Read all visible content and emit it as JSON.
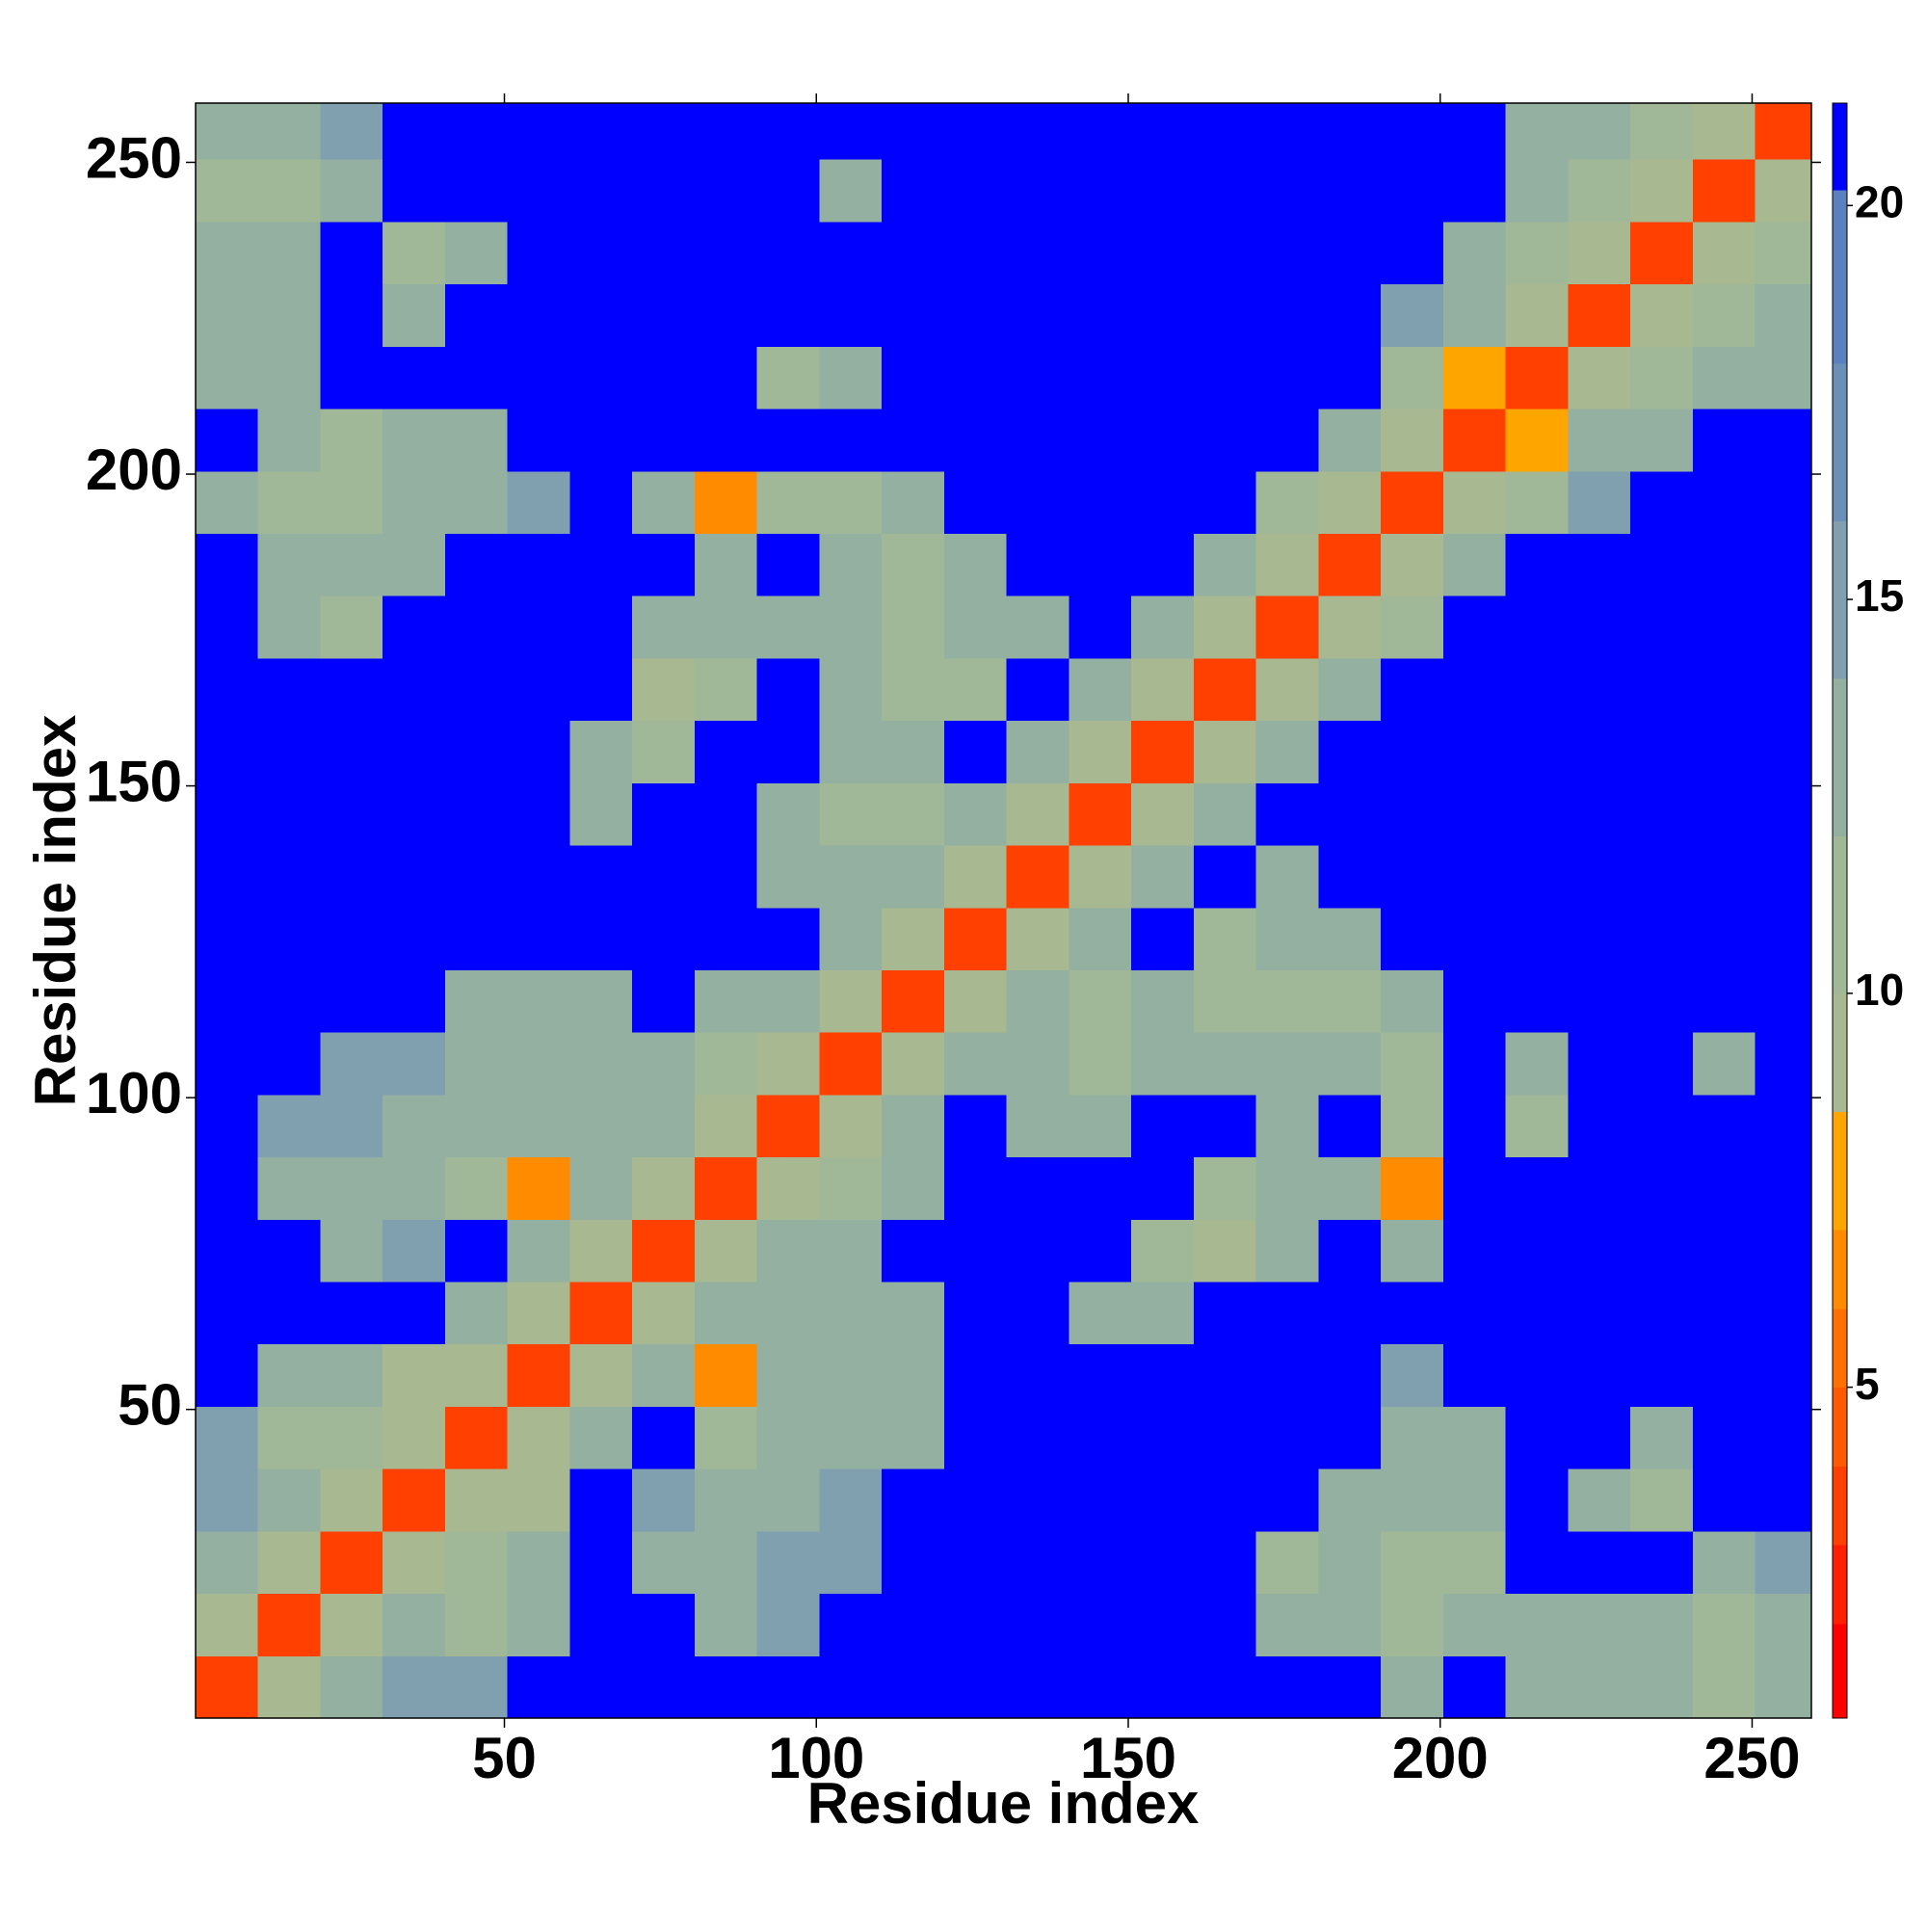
{
  "chart_data": {
    "type": "heatmap",
    "xlabel": "Residue index",
    "ylabel": "Residue index",
    "xlim": [
      0.5,
      259.5
    ],
    "ylim": [
      0.5,
      259.5
    ],
    "xticks": [
      50,
      100,
      150,
      200,
      250
    ],
    "yticks": [
      50,
      100,
      150,
      200,
      250
    ],
    "xbins": [
      0.5,
      10.5,
      20.5,
      30.5,
      40.5,
      50.5,
      60.5,
      70.5,
      80.5,
      90.5,
      100.5,
      110.5,
      120.5,
      130.5,
      140.5,
      150.5,
      160.5,
      170.5,
      180.5,
      190.5,
      200.5,
      210.5,
      220.5,
      230.5,
      240.5,
      250.5,
      259.5
    ],
    "ybins": [
      0.5,
      10.5,
      20.5,
      30.5,
      40.5,
      50.5,
      60.5,
      70.5,
      80.5,
      90.5,
      100.5,
      110.5,
      120.5,
      130.5,
      140.5,
      150.5,
      160.5,
      170.5,
      180.5,
      190.5,
      200.5,
      210.5,
      220.5,
      230.5,
      240.5,
      250.5,
      259.5
    ],
    "zlim": [
      0.8,
      21.3
    ],
    "zticks": [
      5,
      10,
      15,
      20
    ],
    "colorscale": [
      [
        2,
        "#ff0000"
      ],
      [
        3,
        "#ff2000"
      ],
      [
        4,
        "#ff4000"
      ],
      [
        5,
        "#ff5a00"
      ],
      [
        6,
        "#ff7000"
      ],
      [
        7,
        "#ff8c00"
      ],
      [
        8.5,
        "#ffa500"
      ],
      [
        10,
        "#a8b890"
      ],
      [
        12,
        "#a0b898"
      ],
      [
        14,
        "#94b0a0"
      ],
      [
        16,
        "#80a0b0"
      ],
      [
        18,
        "#6a90b8"
      ],
      [
        20.2,
        "#5a80c0"
      ],
      [
        21.3,
        "#0000ff"
      ]
    ],
    "z": [
      [
        4,
        10,
        14,
        15,
        16,
        21,
        21,
        21,
        21,
        21,
        21,
        21,
        21,
        21,
        21,
        21,
        21,
        21,
        21,
        14,
        21,
        14,
        14,
        14,
        12,
        13
      ],
      [
        10,
        4,
        10,
        13,
        12,
        14,
        21,
        21,
        14,
        15,
        21,
        21,
        21,
        21,
        21,
        21,
        21,
        13,
        14,
        11,
        13,
        14,
        13,
        13,
        12,
        14
      ],
      [
        14,
        10,
        4,
        10,
        12,
        13,
        21,
        14,
        13,
        15,
        15,
        21,
        21,
        21,
        21,
        21,
        21,
        12,
        13,
        12,
        12,
        21,
        21,
        21,
        14,
        15
      ],
      [
        15,
        13,
        10,
        4,
        10,
        10,
        21,
        15,
        13,
        14,
        15,
        21,
        21,
        21,
        21,
        21,
        21,
        21,
        14,
        13,
        13,
        21,
        14,
        12,
        21,
        21
      ],
      [
        16,
        12,
        12,
        10,
        4,
        10,
        14,
        21,
        12,
        13,
        14,
        14,
        21,
        21,
        21,
        21,
        21,
        21,
        21,
        14,
        14,
        21,
        21,
        14,
        21,
        21
      ],
      [
        21,
        14,
        13,
        10,
        10,
        4,
        10,
        14,
        7,
        14,
        13,
        13,
        21,
        21,
        21,
        21,
        21,
        21,
        21,
        15,
        21,
        21,
        21,
        21,
        21,
        21
      ],
      [
        21,
        21,
        21,
        21,
        14,
        10,
        4,
        10,
        14,
        13,
        14,
        13,
        21,
        21,
        14,
        13,
        21,
        21,
        21,
        21,
        21,
        21,
        21,
        21,
        21,
        21
      ],
      [
        21,
        21,
        14,
        15,
        21,
        14,
        10,
        4,
        10,
        14,
        13,
        21,
        21,
        21,
        21,
        12,
        9,
        14,
        21,
        13,
        21,
        21,
        21,
        21,
        21,
        21
      ],
      [
        21,
        14,
        13,
        13,
        12,
        7,
        14,
        10,
        4,
        10,
        12,
        14,
        21,
        21,
        21,
        21,
        12,
        13,
        14,
        7,
        21,
        21,
        21,
        21,
        21,
        21
      ],
      [
        21,
        15,
        15,
        14,
        13,
        14,
        13,
        14,
        10,
        4,
        10,
        13,
        21,
        14,
        13,
        21,
        21,
        13,
        21,
        12,
        21,
        12,
        21,
        21,
        21,
        21
      ],
      [
        21,
        21,
        15,
        15,
        14,
        13,
        14,
        13,
        12,
        10,
        4,
        10,
        14,
        13,
        12,
        13,
        14,
        13,
        13,
        12,
        21,
        13,
        21,
        21,
        14,
        21
      ],
      [
        21,
        21,
        21,
        21,
        14,
        13,
        13,
        21,
        14,
        13,
        10,
        4,
        10,
        14,
        12,
        13,
        12,
        11,
        12,
        13,
        21,
        21,
        21,
        21,
        21,
        21
      ],
      [
        21,
        21,
        21,
        21,
        21,
        21,
        21,
        21,
        21,
        21,
        14,
        10,
        4,
        10,
        14,
        21,
        12,
        13,
        13,
        21,
        21,
        21,
        21,
        21,
        21,
        21
      ],
      [
        21,
        21,
        21,
        21,
        21,
        21,
        21,
        21,
        21,
        14,
        13,
        14,
        10,
        4,
        10,
        14,
        21,
        13,
        21,
        21,
        21,
        21,
        21,
        21,
        21,
        21
      ],
      [
        21,
        21,
        21,
        21,
        21,
        21,
        14,
        21,
        21,
        13,
        12,
        12,
        14,
        10,
        4,
        10,
        13,
        21,
        21,
        21,
        21,
        21,
        21,
        21,
        21,
        21
      ],
      [
        21,
        21,
        21,
        21,
        21,
        21,
        13,
        12,
        21,
        21,
        13,
        13,
        21,
        14,
        10,
        4,
        10,
        13,
        21,
        21,
        21,
        21,
        21,
        21,
        21,
        21
      ],
      [
        21,
        21,
        21,
        21,
        21,
        21,
        21,
        9,
        12,
        21,
        14,
        12,
        12,
        21,
        13,
        10,
        4,
        10,
        13,
        21,
        21,
        21,
        21,
        21,
        21,
        21
      ],
      [
        21,
        13,
        12,
        21,
        21,
        21,
        21,
        14,
        13,
        13,
        13,
        11,
        13,
        13,
        21,
        13,
        10,
        4,
        10,
        12,
        21,
        21,
        21,
        21,
        21,
        21
      ],
      [
        21,
        14,
        13,
        14,
        21,
        21,
        21,
        21,
        14,
        21,
        13,
        12,
        13,
        21,
        21,
        21,
        13,
        10,
        4,
        10,
        13,
        21,
        21,
        21,
        21,
        21
      ],
      [
        14,
        11,
        12,
        13,
        14,
        15,
        21,
        13,
        7,
        12,
        12,
        13,
        21,
        21,
        21,
        21,
        21,
        12,
        10,
        4,
        10,
        12,
        15,
        21,
        21,
        21
      ],
      [
        21,
        13,
        12,
        13,
        14,
        21,
        21,
        21,
        21,
        21,
        21,
        21,
        21,
        21,
        21,
        21,
        21,
        21,
        13,
        10,
        4,
        8,
        13,
        14,
        21,
        21
      ],
      [
        14,
        14,
        21,
        21,
        21,
        21,
        21,
        21,
        21,
        12,
        13,
        21,
        21,
        21,
        21,
        21,
        21,
        21,
        21,
        12,
        8,
        4,
        10,
        12,
        13,
        14
      ],
      [
        14,
        13,
        21,
        14,
        21,
        21,
        21,
        21,
        21,
        21,
        21,
        21,
        21,
        21,
        21,
        21,
        21,
        21,
        21,
        15,
        13,
        10,
        4,
        10,
        12,
        13
      ],
      [
        14,
        13,
        21,
        12,
        14,
        21,
        21,
        21,
        21,
        21,
        21,
        21,
        21,
        21,
        21,
        21,
        21,
        21,
        21,
        21,
        14,
        12,
        10,
        4,
        10,
        12
      ],
      [
        12,
        12,
        14,
        21,
        21,
        21,
        21,
        21,
        21,
        21,
        14,
        21,
        21,
        21,
        21,
        21,
        21,
        21,
        21,
        21,
        21,
        13,
        12,
        10,
        4,
        10
      ],
      [
        13,
        14,
        15,
        21,
        21,
        21,
        21,
        21,
        21,
        21,
        21,
        21,
        21,
        21,
        21,
        21,
        21,
        21,
        21,
        21,
        21,
        14,
        13,
        12,
        10,
        4
      ]
    ]
  }
}
